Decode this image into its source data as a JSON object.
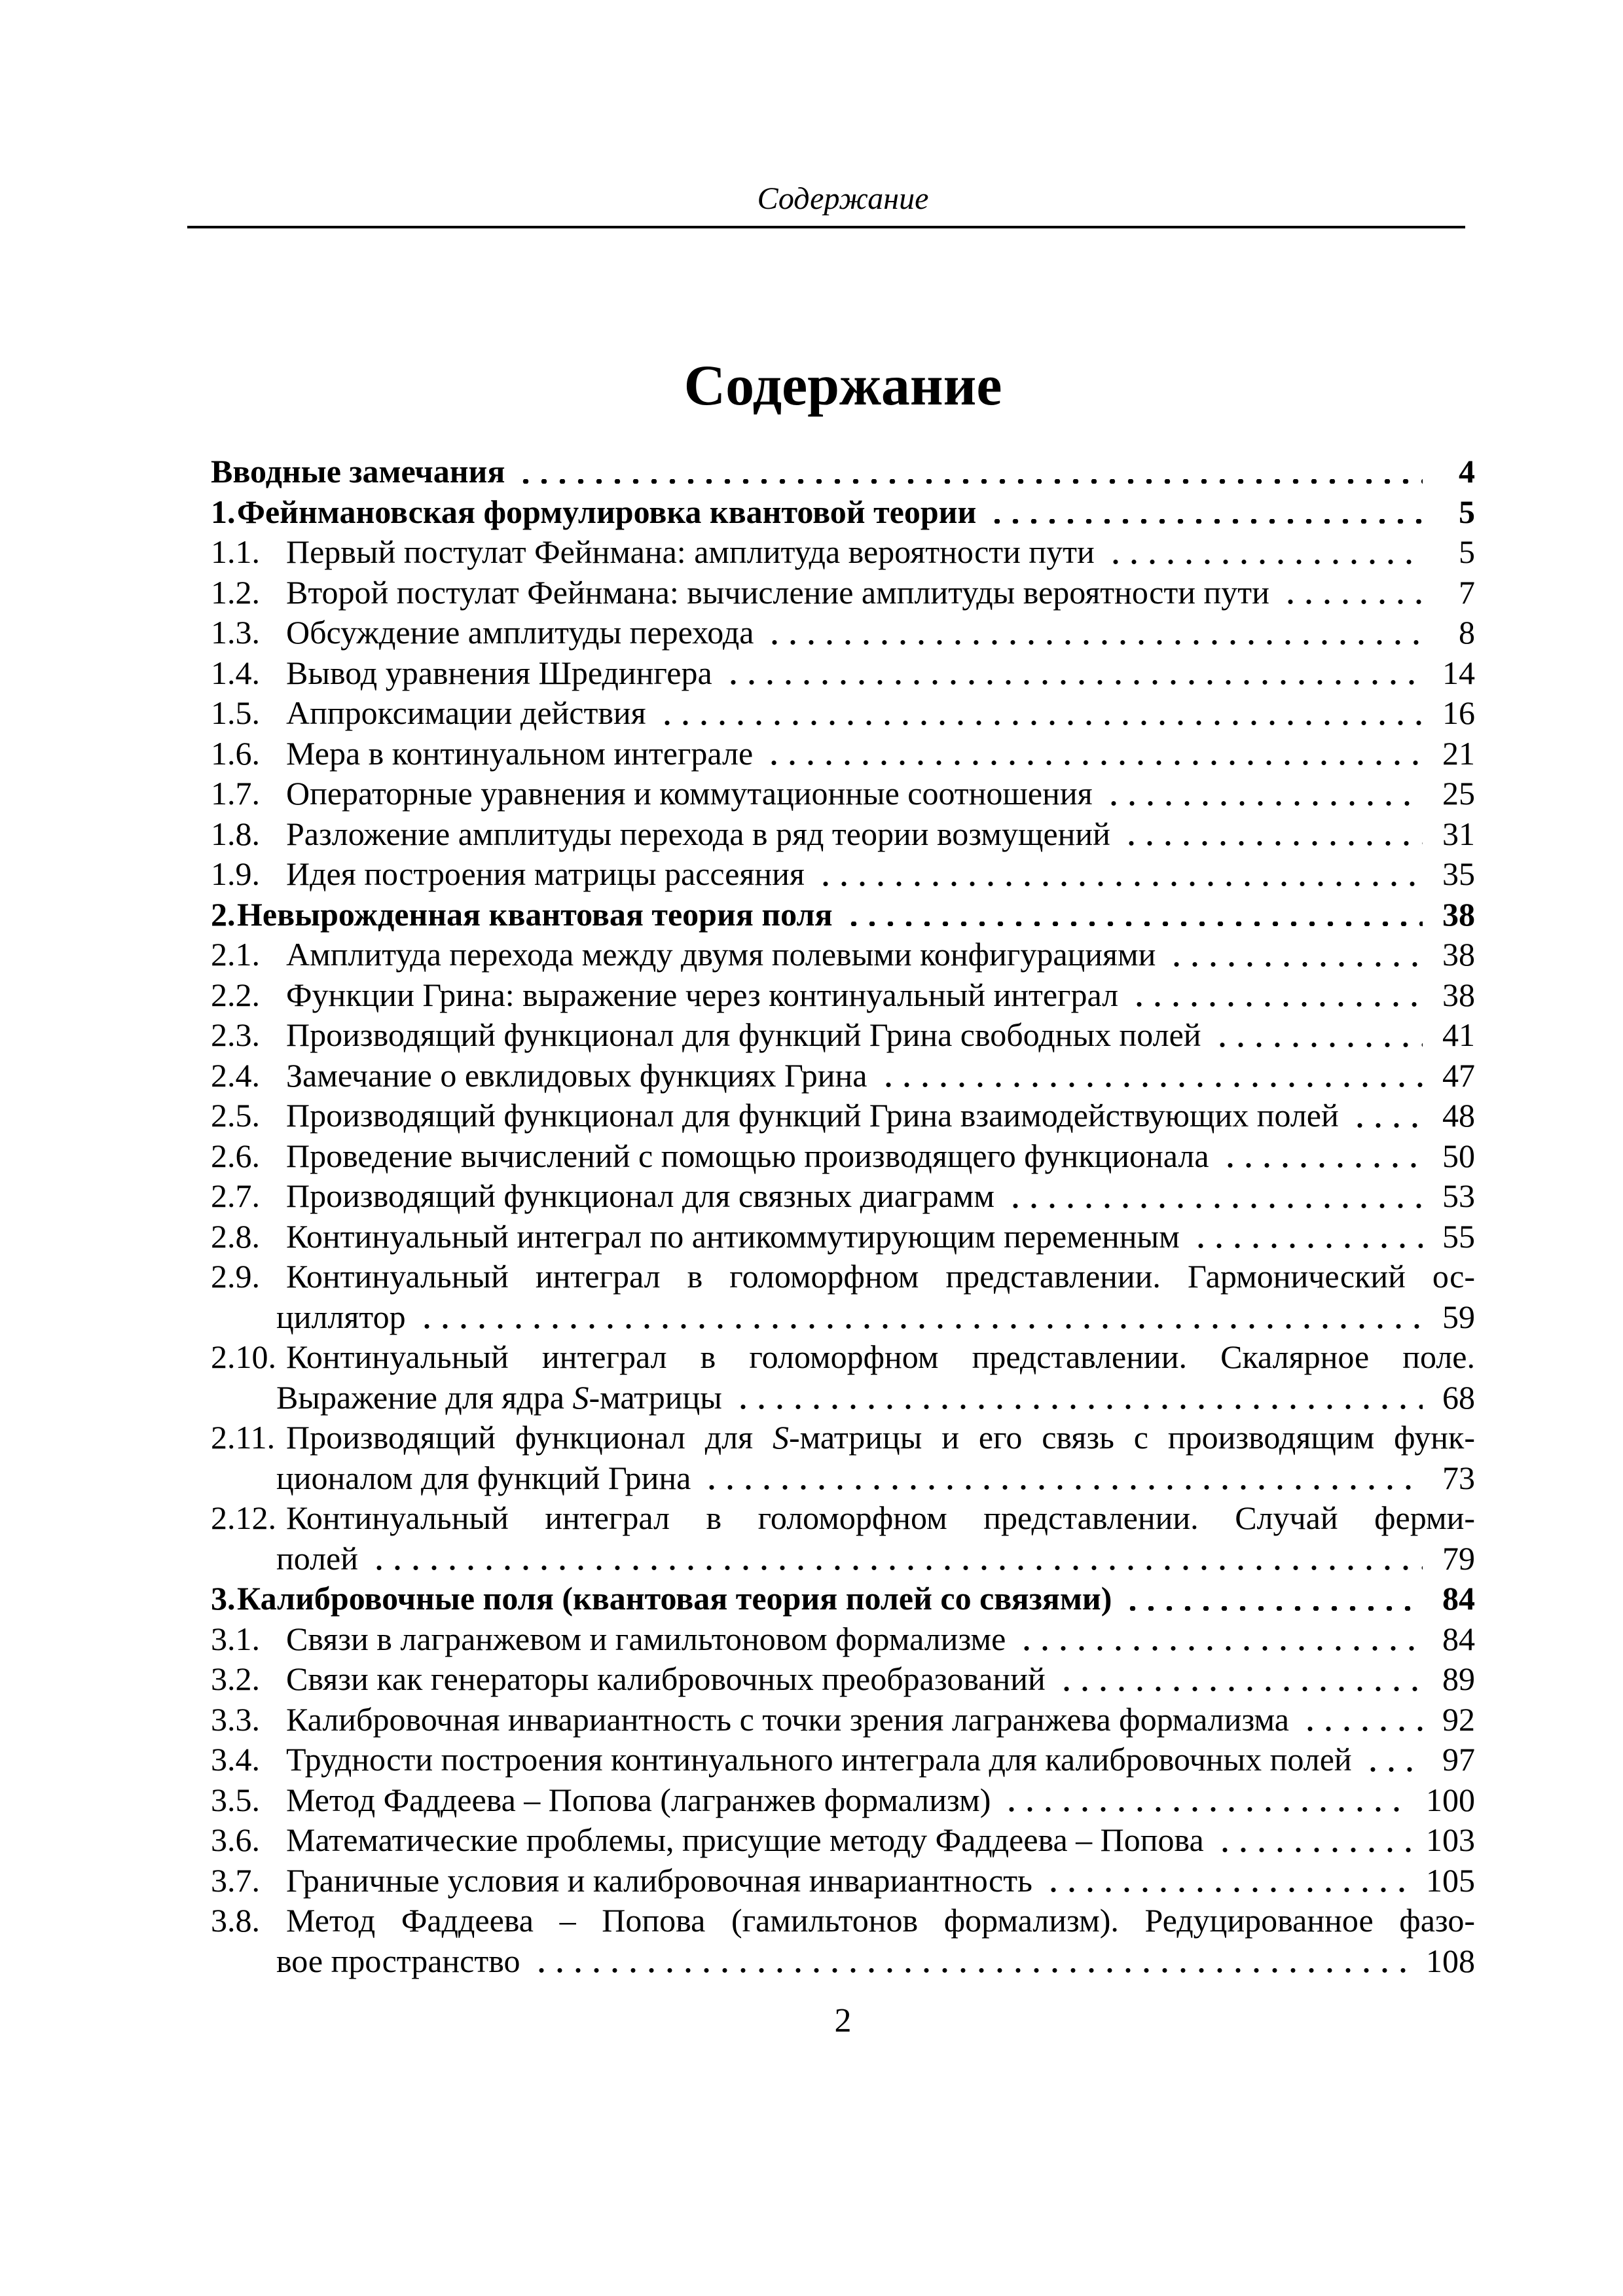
{
  "page": {
    "running_head": "Содержание",
    "title": "Содержание",
    "footer_page_number": "2"
  },
  "toc": {
    "rows": [
      {
        "num": "",
        "text": "Вводные замечания",
        "page": "4",
        "bold": true
      },
      {
        "num": "1.",
        "text": "Фейнмановская формулировка квантовой теории",
        "page": "5",
        "bold": true
      },
      {
        "num": "1.1.",
        "text": "Первый постулат Фейнмана: амплитуда вероятности пути",
        "page": "5"
      },
      {
        "num": "1.2.",
        "text": "Второй постулат Фейнмана: вычисление амплитуды вероятности пути",
        "page": "7"
      },
      {
        "num": "1.3.",
        "text": "Обсуждение амплитуды перехода",
        "page": "8"
      },
      {
        "num": "1.4.",
        "text": "Вывод уравнения Шредингера",
        "page": "14"
      },
      {
        "num": "1.5.",
        "text": "Аппроксимации действия",
        "page": "16"
      },
      {
        "num": "1.6.",
        "text": "Мера в континуальном интеграле",
        "page": "21"
      },
      {
        "num": "1.7.",
        "text": "Операторные уравнения и коммутационные соотношения",
        "page": "25"
      },
      {
        "num": "1.8.",
        "text": "Разложение амплитуды перехода в ряд теории возмущений",
        "page": "31"
      },
      {
        "num": "1.9.",
        "text": "Идея построения матрицы рассеяния",
        "page": "35"
      },
      {
        "num": "2.",
        "text": "Невырожденная квантовая теория поля",
        "page": "38",
        "bold": true
      },
      {
        "num": "2.1.",
        "text": "Амплитуда перехода между двумя полевыми конфигурациями",
        "page": "38"
      },
      {
        "num": "2.2.",
        "text": "Функции Грина: выражение через континуальный интеграл",
        "page": "38"
      },
      {
        "num": "2.3.",
        "text": "Производящий функционал для функций Грина свободных полей",
        "page": "41"
      },
      {
        "num": "2.4.",
        "text": "Замечание о евклидовых функциях Грина",
        "page": "47"
      },
      {
        "num": "2.5.",
        "text": "Производящий функционал для функций Грина взаимодействующих полей",
        "page": "48"
      },
      {
        "num": "2.6.",
        "text": "Проведение вычислений с помощью производящего функционала",
        "page": "50"
      },
      {
        "num": "2.7.",
        "text": "Производящий функционал для связных диаграмм",
        "page": "53"
      },
      {
        "num": "2.8.",
        "text": "Континуальный интеграл по антикоммутирующим переменным",
        "page": "55"
      },
      {
        "num": "2.9.",
        "text": "Континуальный интеграл в голоморфном представлении. Гармонический ос-",
        "justify": true
      },
      {
        "cont": true,
        "text": "циллятор",
        "page": "59"
      },
      {
        "num": "2.10.",
        "text": "Континуальный интеграл в голоморфном представлении. Скалярное поле.",
        "justify": true
      },
      {
        "cont": true,
        "text": "Выражение для ядра S-матрицы",
        "page": "68"
      },
      {
        "num": "2.11.",
        "text": "Производящий функционал для S-матрицы и его связь с производящим функ-",
        "justify": true
      },
      {
        "cont": true,
        "text": "ционалом для функций Грина",
        "page": "73"
      },
      {
        "num": "2.12.",
        "text": "Континуальный интеграл в голоморфном представлении. Случай ферми-",
        "justify": true
      },
      {
        "cont": true,
        "text": "полей",
        "page": "79"
      },
      {
        "num": "3.",
        "text": "Калибровочные поля (квантовая теория полей со связями)",
        "page": "84",
        "bold": true
      },
      {
        "num": "3.1.",
        "text": "Связи в лагранжевом и гамильтоновом формализме",
        "page": "84"
      },
      {
        "num": "3.2.",
        "text": "Связи как генераторы калибровочных преобразований",
        "page": "89"
      },
      {
        "num": "3.3.",
        "text": "Калибровочная инвариантность с точки зрения лагранжева формализма",
        "page": "92"
      },
      {
        "num": "3.4.",
        "text": "Трудности построения континуального интеграла для калибровочных полей",
        "page": "97"
      },
      {
        "num": "3.5.",
        "text": "Метод Фаддеева – Попова (лагранжев формализм)",
        "page": "100"
      },
      {
        "num": "3.6.",
        "text": "Математические проблемы, присущие методу Фаддеева – Попова",
        "page": "103"
      },
      {
        "num": "3.7.",
        "text": "Граничные условия и калибровочная инвариантность",
        "page": "105"
      },
      {
        "num": "3.8.",
        "text": "Метод Фаддеева – Попова (гамильтонов формализм). Редуцированное фазо-",
        "justify": true
      },
      {
        "cont": true,
        "text": "вое пространство",
        "page": "108"
      }
    ]
  }
}
